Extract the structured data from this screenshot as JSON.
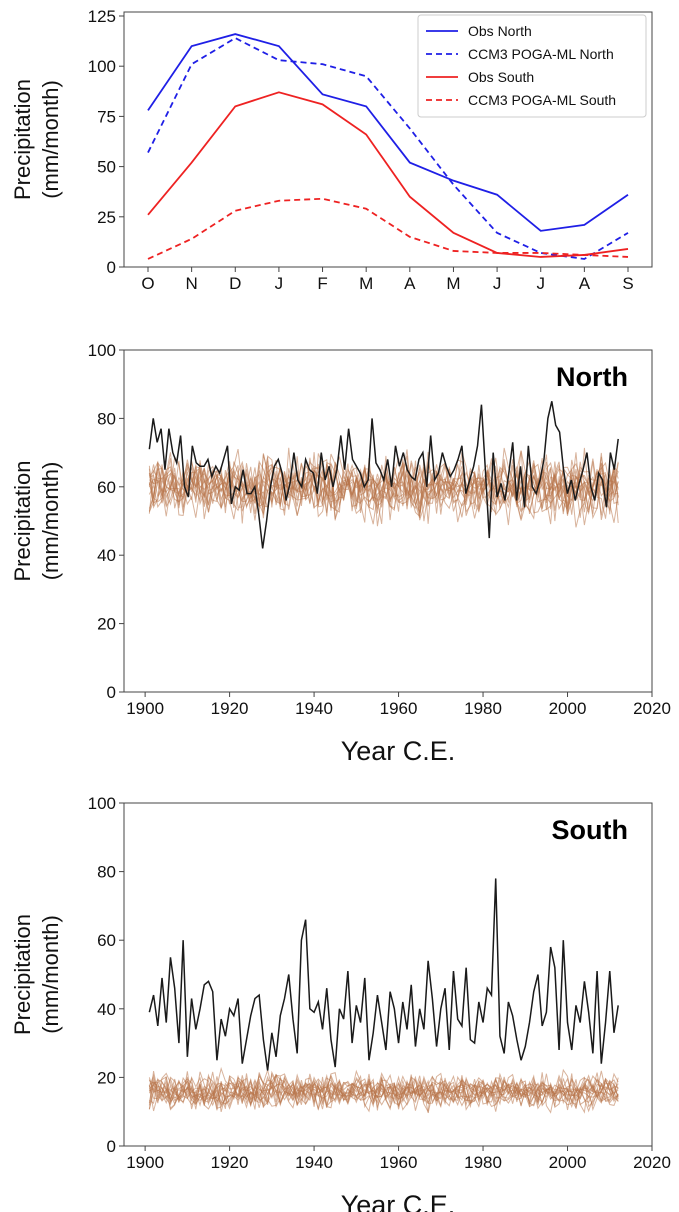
{
  "chart_data": [
    {
      "type": "line",
      "categories": [
        "O",
        "N",
        "D",
        "J",
        "F",
        "M",
        "A",
        "M",
        "J",
        "J",
        "A",
        "S"
      ],
      "ylabel_line1": "Precipitation",
      "ylabel_line2": "(mm/month)",
      "ylim": [
        0,
        125
      ],
      "yticks": [
        0,
        25,
        50,
        75,
        100,
        125
      ],
      "legend_position": "top-right",
      "series": [
        {
          "name": "Obs North",
          "color": "#1f1fe6",
          "style": "solid",
          "values": [
            78,
            110,
            116,
            110,
            86,
            80,
            52,
            43,
            36,
            18,
            21,
            36
          ]
        },
        {
          "name": "CCM3 POGA-ML North",
          "color": "#1f1fe6",
          "style": "dashed",
          "values": [
            57,
            101,
            114,
            103,
            101,
            95,
            69,
            41,
            17,
            7,
            4,
            17
          ]
        },
        {
          "name": "Obs South",
          "color": "#ee2222",
          "style": "solid",
          "values": [
            26,
            52,
            80,
            87,
            81,
            66,
            35,
            17,
            7,
            5,
            6,
            9
          ]
        },
        {
          "name": "CCM3 POGA-ML South",
          "color": "#ee2222",
          "style": "dashed",
          "values": [
            4,
            14,
            28,
            33,
            34,
            29,
            15,
            8,
            7,
            7,
            6,
            5
          ]
        }
      ]
    },
    {
      "type": "line",
      "title": "North",
      "xlabel": "Year C.E.",
      "ylabel_line1": "Precipitation",
      "ylabel_line2": "(mm/month)",
      "xlim": [
        1895,
        2020
      ],
      "ylim": [
        0,
        100
      ],
      "xticks": [
        1900,
        1920,
        1940,
        1960,
        1980,
        2000,
        2020
      ],
      "yticks": [
        0,
        20,
        40,
        60,
        80,
        100
      ],
      "ensemble": {
        "color": "#b8744a",
        "members": 16,
        "year_start": 1901,
        "year_end": 2012,
        "mean": 60,
        "spread": 6,
        "min": 34,
        "max": 87
      },
      "series": [
        {
          "name": "",
          "color": "#1a1a1a",
          "x_start": 1901,
          "values": [
            71,
            80,
            73,
            77,
            65,
            77,
            70,
            67,
            75,
            60,
            57,
            72,
            67,
            66,
            66,
            68,
            63,
            66,
            64,
            68,
            72,
            55,
            60,
            59,
            65,
            58,
            58,
            60,
            52,
            42,
            50,
            60,
            66,
            68,
            64,
            56,
            61,
            70,
            62,
            60,
            68,
            65,
            64,
            58,
            70,
            62,
            66,
            60,
            65,
            75,
            65,
            77,
            68,
            66,
            64,
            60,
            62,
            80,
            67,
            65,
            62,
            68,
            60,
            72,
            66,
            70,
            65,
            63,
            62,
            68,
            70,
            60,
            75,
            62,
            64,
            70,
            66,
            63,
            65,
            68,
            72,
            58,
            62,
            66,
            72,
            84,
            65,
            45,
            70,
            57,
            61,
            56,
            64,
            73,
            56,
            66,
            54,
            72,
            60,
            58,
            62,
            68,
            80,
            85,
            78,
            76,
            65,
            58,
            62,
            56,
            61,
            65,
            70,
            60,
            56,
            64,
            62,
            54,
            70,
            65,
            74
          ]
        }
      ]
    },
    {
      "type": "line",
      "title": "South",
      "xlabel": "Year C.E.",
      "ylabel_line1": "Precipitation",
      "ylabel_line2": "(mm/month)",
      "xlim": [
        1895,
        2020
      ],
      "ylim": [
        0,
        100
      ],
      "xticks": [
        1900,
        1920,
        1940,
        1960,
        1980,
        2000,
        2020
      ],
      "yticks": [
        0,
        20,
        40,
        60,
        80,
        100
      ],
      "ensemble": {
        "color": "#b8744a",
        "members": 16,
        "year_start": 1901,
        "year_end": 2012,
        "mean": 16,
        "spread": 3.5,
        "min": 6,
        "max": 29
      },
      "series": [
        {
          "name": "",
          "color": "#1a1a1a",
          "x_start": 1901,
          "values": [
            39,
            44,
            35,
            49,
            36,
            55,
            46,
            30,
            60,
            26,
            43,
            34,
            40,
            47,
            48,
            45,
            25,
            37,
            32,
            40,
            38,
            43,
            24,
            31,
            38,
            43,
            44,
            31,
            22,
            33,
            26,
            38,
            43,
            50,
            37,
            27,
            60,
            66,
            40,
            39,
            42,
            34,
            46,
            31,
            23,
            40,
            37,
            51,
            30,
            41,
            36,
            49,
            25,
            33,
            44,
            36,
            28,
            45,
            40,
            30,
            42,
            34,
            47,
            29,
            40,
            34,
            54,
            43,
            29,
            40,
            46,
            28,
            51,
            37,
            35,
            52,
            31,
            30,
            42,
            36,
            46,
            44,
            78,
            32,
            27,
            42,
            38,
            31,
            25,
            29,
            36,
            45,
            50,
            35,
            39,
            58,
            52,
            28,
            60,
            36,
            28,
            41,
            36,
            48,
            39,
            27,
            51,
            24,
            36,
            51,
            33,
            41
          ]
        }
      ]
    }
  ]
}
